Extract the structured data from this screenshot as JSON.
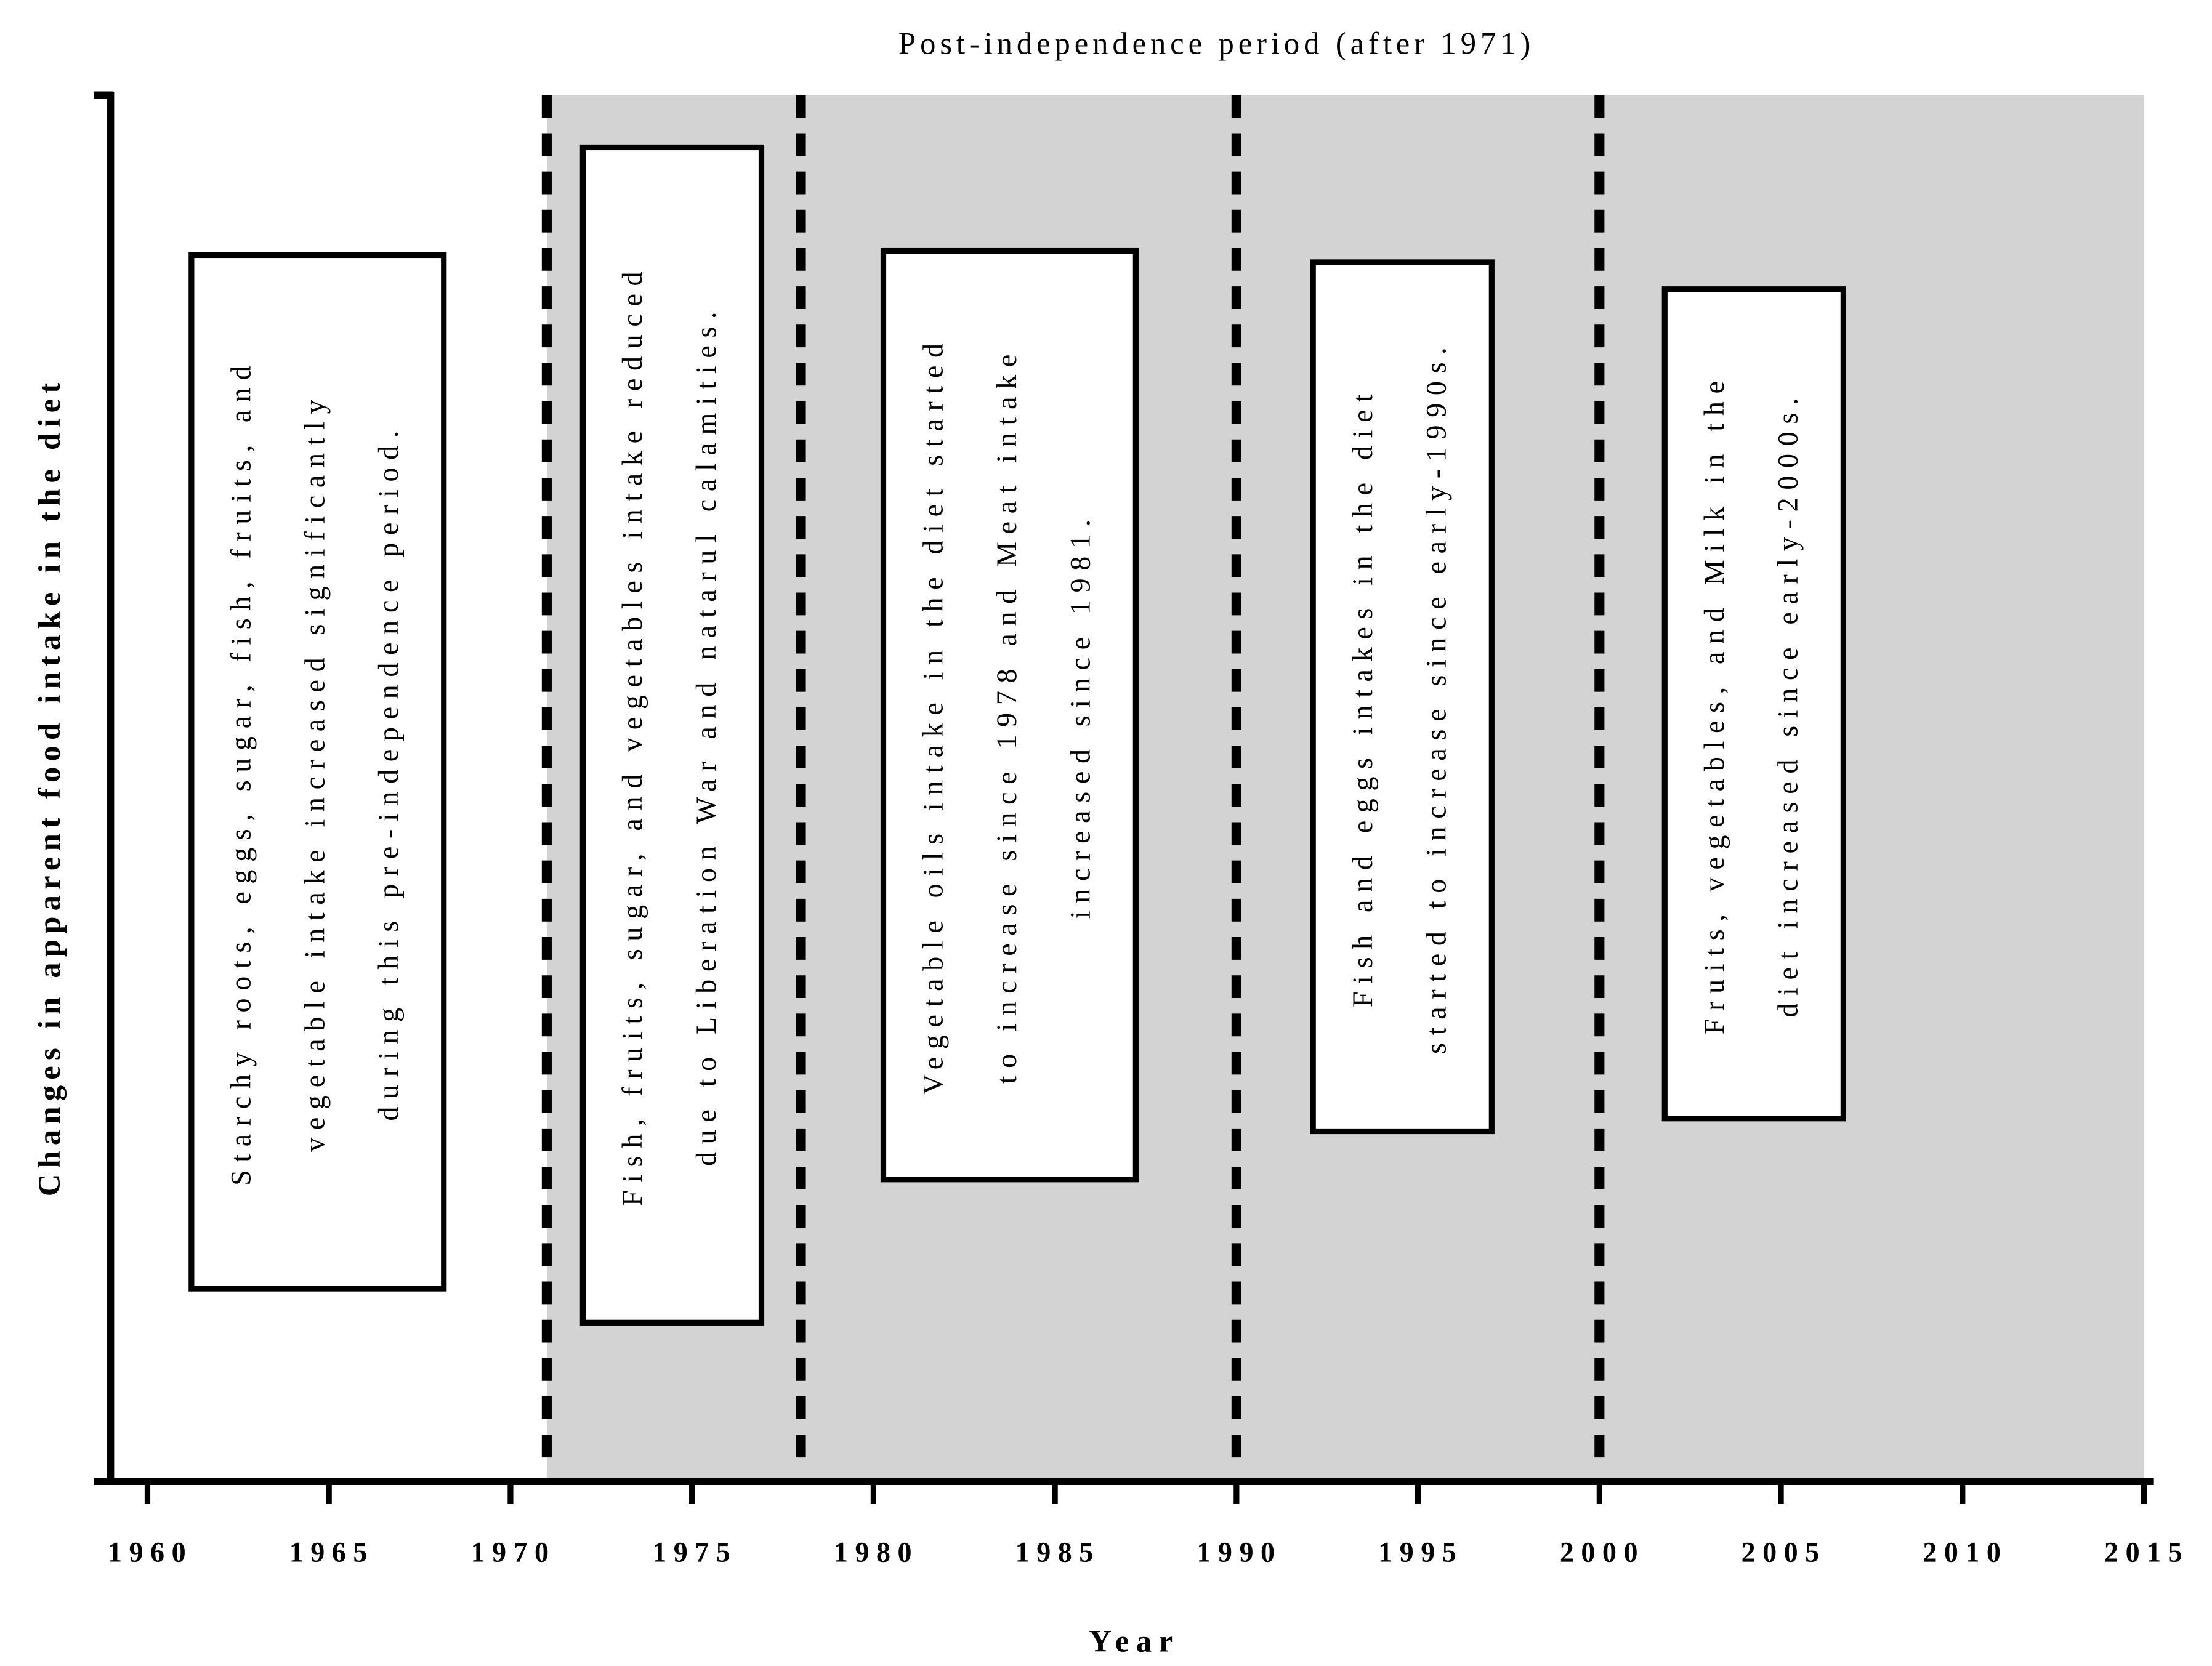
{
  "chart_data": {
    "type": "timeline",
    "title": "Post-independence period (after 1971)",
    "x_label": "Year",
    "y_label": "Changes in apparent food intake in the diet",
    "xlim": [
      1959,
      2015
    ],
    "xticks": [
      1960,
      1965,
      1970,
      1975,
      1980,
      1985,
      1990,
      1995,
      2000,
      2005,
      2010,
      2015
    ],
    "shaded_period": [
      1971,
      2015
    ],
    "shade_color": "#d3d3d3",
    "dividers": [
      1971,
      1978,
      1990,
      2000
    ],
    "annotations": [
      {
        "lines": [
          "Starchy roots, eggs, sugar, fish, fruits, and",
          "vegetable intake increased significantly",
          "during this pre-independence period."
        ]
      },
      {
        "lines": [
          "Fish, fruits, sugar, and vegetables intake reduced",
          "due to Liberation War and natarul calamities."
        ]
      },
      {
        "lines": [
          "Vegetable oils intake in the diet started",
          "to increase since 1978 and Meat intake",
          "increased since 1981."
        ]
      },
      {
        "lines": [
          "Fish and eggs intakes in the diet",
          "started to increase since early-1990s."
        ]
      },
      {
        "lines": [
          "Fruits, vegetables, and Milk in the",
          "diet increased since early-2000s."
        ]
      }
    ]
  }
}
